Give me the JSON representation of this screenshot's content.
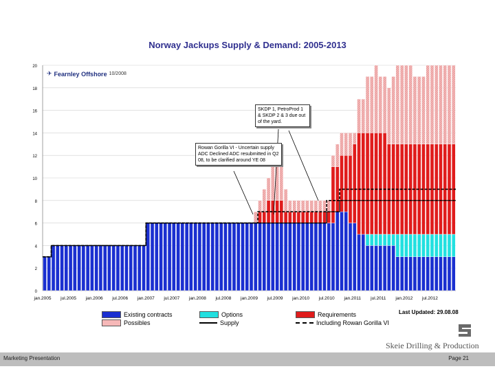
{
  "chart_data": {
    "type": "bar",
    "title": "Norway Jackups Supply & Demand: 2005-2013",
    "ylim": [
      0,
      20
    ],
    "yticks": [
      0,
      2,
      4,
      6,
      8,
      10,
      12,
      14,
      16,
      18,
      20
    ],
    "xtick_labels": [
      "jan.2005",
      "jul.2005",
      "jan.2006",
      "jul.2006",
      "jan.2007",
      "jul.2007",
      "jan.2008",
      "jul.2008",
      "jan.2009",
      "jul.2009",
      "jan.2010",
      "jul.2010",
      "jan.2011",
      "jul.2011",
      "jan.2012",
      "jul.2012"
    ],
    "months": 96,
    "series": [
      {
        "name": "Existing contracts",
        "color": "#1a2fd0",
        "values": [
          3,
          3,
          4,
          4,
          4,
          4,
          4,
          4,
          4,
          4,
          4,
          4,
          4,
          4,
          4,
          4,
          4,
          4,
          4,
          4,
          4,
          4,
          4,
          4,
          6,
          6,
          6,
          6,
          6,
          6,
          6,
          6,
          6,
          6,
          6,
          6,
          6,
          6,
          6,
          6,
          6,
          6,
          6,
          6,
          6,
          6,
          6,
          6,
          6,
          6,
          6,
          6,
          6,
          6,
          6,
          6,
          6,
          6,
          6,
          6,
          6,
          6,
          6,
          6,
          6,
          6,
          6,
          6,
          7,
          7,
          7,
          6,
          6,
          5,
          5,
          4,
          4,
          4,
          4,
          4,
          4,
          4,
          3,
          3,
          3,
          3,
          3,
          3,
          3,
          3,
          3,
          3,
          3,
          3,
          3,
          3
        ]
      },
      {
        "name": "Options",
        "color": "#22e0e0",
        "values": [
          0,
          0,
          0,
          0,
          0,
          0,
          0,
          0,
          0,
          0,
          0,
          0,
          0,
          0,
          0,
          0,
          0,
          0,
          0,
          0,
          0,
          0,
          0,
          0,
          0,
          0,
          0,
          0,
          0,
          0,
          0,
          0,
          0,
          0,
          0,
          0,
          0,
          0,
          0,
          0,
          0,
          0,
          0,
          0,
          0,
          0,
          0,
          0,
          0,
          0,
          0,
          0,
          0,
          0,
          0,
          0,
          0,
          0,
          0,
          0,
          0,
          0,
          0,
          0,
          0,
          0,
          0,
          0,
          0,
          0,
          0,
          0,
          0,
          0,
          0,
          1,
          1,
          1,
          1,
          1,
          1,
          1,
          2,
          2,
          2,
          2,
          2,
          2,
          2,
          2,
          2,
          2,
          2,
          2,
          2,
          2
        ]
      },
      {
        "name": "Requirements",
        "color": "#e01c1c",
        "values": [
          0,
          0,
          0,
          0,
          0,
          0,
          0,
          0,
          0,
          0,
          0,
          0,
          0,
          0,
          0,
          0,
          0,
          0,
          0,
          0,
          0,
          0,
          0,
          0,
          0,
          0,
          0,
          0,
          0,
          0,
          0,
          0,
          0,
          0,
          0,
          0,
          0,
          0,
          0,
          0,
          0,
          0,
          0,
          0,
          0,
          0,
          0,
          0,
          0,
          0,
          1,
          1,
          2,
          2,
          2,
          2,
          1,
          1,
          1,
          1,
          1,
          1,
          1,
          1,
          1,
          1,
          1,
          5,
          4,
          5,
          5,
          6,
          7,
          9,
          9,
          9,
          9,
          9,
          9,
          9,
          8,
          8,
          8,
          8,
          8,
          8,
          8,
          8,
          8,
          8,
          8,
          8,
          8,
          8,
          8,
          8
        ]
      },
      {
        "name": "Possibles",
        "color": "#f6b8b8",
        "values": [
          0,
          0,
          0,
          0,
          0,
          0,
          0,
          0,
          0,
          0,
          0,
          0,
          0,
          0,
          0,
          0,
          0,
          0,
          0,
          0,
          0,
          0,
          0,
          0,
          0,
          0,
          0,
          0,
          0,
          0,
          0,
          0,
          0,
          0,
          0,
          0,
          0,
          0,
          0,
          0,
          0,
          0,
          0,
          0,
          0,
          0,
          0,
          0,
          0,
          1,
          1,
          2,
          2,
          3,
          3,
          3,
          2,
          1,
          1,
          1,
          1,
          1,
          1,
          1,
          1,
          1,
          1,
          1,
          2,
          2,
          2,
          2,
          1,
          3,
          3,
          5,
          5,
          6,
          5,
          5,
          5,
          6,
          7,
          7,
          7,
          7,
          6,
          6,
          6,
          7,
          7,
          7,
          7,
          7,
          7,
          7
        ]
      }
    ],
    "lines": [
      {
        "name": "Supply",
        "color": "#000000",
        "style": "solid-marker",
        "values": [
          3,
          3,
          4,
          4,
          4,
          4,
          4,
          4,
          4,
          4,
          4,
          4,
          4,
          4,
          4,
          4,
          4,
          4,
          4,
          4,
          4,
          4,
          4,
          4,
          6,
          6,
          6,
          6,
          6,
          6,
          6,
          6,
          6,
          6,
          6,
          6,
          6,
          6,
          6,
          6,
          6,
          6,
          6,
          6,
          6,
          6,
          6,
          6,
          6,
          6,
          6,
          6,
          6,
          6,
          6,
          6,
          6,
          6,
          6,
          6,
          6,
          6,
          6,
          6,
          6,
          6,
          7,
          7,
          7,
          8,
          8,
          8,
          8,
          8,
          8,
          8,
          8,
          8,
          8,
          8,
          8,
          8,
          8,
          8,
          8,
          8,
          8,
          8,
          8,
          8,
          8,
          8,
          8,
          8,
          8,
          8
        ]
      },
      {
        "name": "Including Rowan Gorilla VI",
        "color": "#000000",
        "style": "dashed",
        "values": [
          3,
          3,
          4,
          4,
          4,
          4,
          4,
          4,
          4,
          4,
          4,
          4,
          4,
          4,
          4,
          4,
          4,
          4,
          4,
          4,
          4,
          4,
          4,
          4,
          6,
          6,
          6,
          6,
          6,
          6,
          6,
          6,
          6,
          6,
          6,
          6,
          6,
          6,
          6,
          6,
          6,
          6,
          6,
          6,
          6,
          6,
          6,
          6,
          6,
          6,
          7,
          7,
          7,
          7,
          7,
          7,
          7,
          7,
          7,
          7,
          7,
          7,
          7,
          7,
          7,
          7,
          8,
          8,
          8,
          9,
          9,
          9,
          9,
          9,
          9,
          9,
          9,
          9,
          9,
          9,
          9,
          9,
          9,
          9,
          9,
          9,
          9,
          9,
          9,
          9,
          9,
          9,
          9,
          9,
          9,
          9
        ]
      }
    ],
    "annotations": [
      "SKDP 1, PetroProd 1 & SKDP 2 & 3 due out of the yard.",
      "Rowan Gorilla VI - Uncertain supply ADC Declined ADC resubmitted in Q2 08, to be clarified around YE 08"
    ]
  },
  "legend": {
    "existing": "Existing contracts",
    "options": "Options",
    "requirements": "Requirements",
    "possibles": "Possibles",
    "supply": "Supply",
    "rowan": "Including Rowan Gorilla VI"
  },
  "colors": {
    "existing": "#1a2fd0",
    "options": "#22e0e0",
    "requirements": "#e01c1c",
    "possibles": "#f6b8b8"
  },
  "source": {
    "name": "Fearnley Offshore",
    "date": "10/2008"
  },
  "callouts": {
    "skdp": "SKDP 1, PetroProd 1 & SKDP 2 & 3 due out of the yard.",
    "rowan": "Rowan Gorilla VI - Uncertain supply ADC Declined ADC resubmitted in Q2 08, to be clarified around YE 08"
  },
  "last_updated": "Last Updated: 29.08.08",
  "company": "Skeie Drilling & Production",
  "footer": {
    "left": "Marketing Presentation",
    "right": "Page 21"
  }
}
